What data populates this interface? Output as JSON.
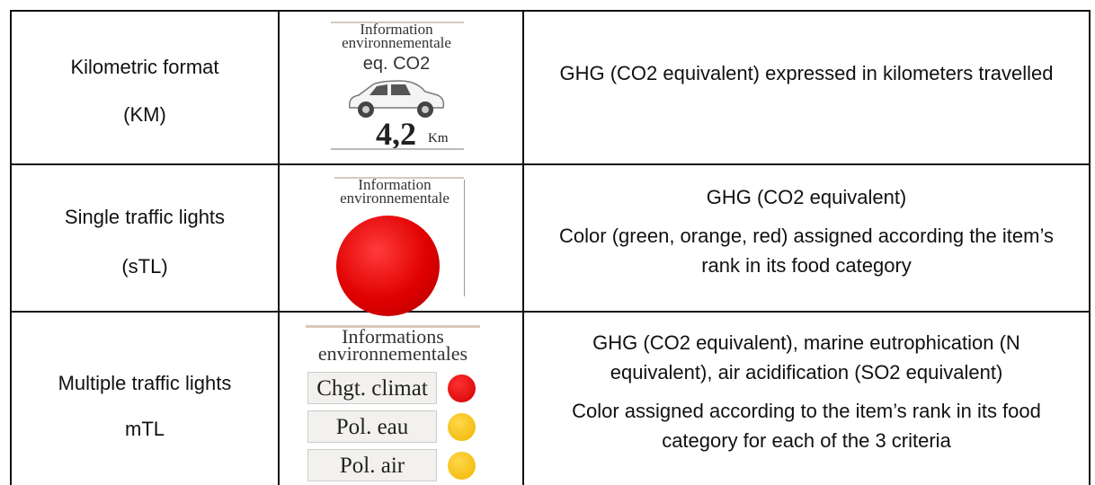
{
  "table": {
    "rows": [
      {
        "label": [
          "Kilometric format",
          "(KM)"
        ],
        "image": {
          "title": [
            "Information",
            "environnementale"
          ],
          "subtitle": "eq. CO2",
          "value": "4,2",
          "unit": "Km"
        },
        "description": [
          "GHG (CO2 equivalent) expressed in kilometers travelled"
        ]
      },
      {
        "label": [
          "Single traffic lights",
          "(sTL)"
        ],
        "image": {
          "title": [
            "Information",
            "environnementale"
          ]
        },
        "description": [
          "GHG (CO2 equivalent)",
          "Color (green, orange, red) assigned according the item’s rank in its food category"
        ]
      },
      {
        "label": [
          "Multiple traffic lights",
          "mTL"
        ],
        "image": {
          "title": [
            "Informations",
            "environnementales"
          ],
          "criteria": [
            "Chgt. climat",
            "Pol. eau",
            "Pol. air"
          ]
        },
        "description": [
          "GHG (CO2 equivalent), marine eutrophication (N equivalent), air acidification (SO2 equivalent)",
          "Color assigned according to the item’s rank in its food category for each of the 3 criteria"
        ]
      }
    ]
  }
}
